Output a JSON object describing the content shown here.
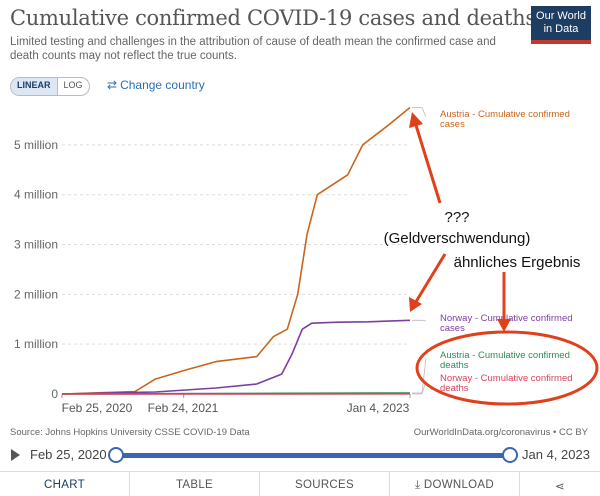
{
  "title": "Cumulative confirmed COVID-19 cases and deaths",
  "subtitle": "Limited testing and challenges in the attribution of cause of death mean the confirmed case and death counts may not reflect the true counts.",
  "logo": {
    "line1": "Our World",
    "line2": "in Data"
  },
  "controls": {
    "linear": "LINEAR",
    "log": "LOG",
    "change_country": "Change country"
  },
  "chart_data": {
    "type": "line",
    "x_ticks": [
      "Feb 25, 2020",
      "Feb 24, 2021",
      "Jan 4, 2023"
    ],
    "y_ticks": [
      "0",
      "1 million",
      "2 million",
      "3 million",
      "4 million",
      "5 million"
    ],
    "ylim": [
      0,
      5800000
    ],
    "series": [
      {
        "name": "Austria - Cumulative confirmed cases",
        "color": "#c8651b",
        "points": [
          [
            "2020-02-25",
            0
          ],
          [
            "2020-10-01",
            50000
          ],
          [
            "2020-12-01",
            300000
          ],
          [
            "2021-03-01",
            480000
          ],
          [
            "2021-06-01",
            650000
          ],
          [
            "2021-10-01",
            750000
          ],
          [
            "2021-11-20",
            1150000
          ],
          [
            "2022-01-01",
            1300000
          ],
          [
            "2022-02-01",
            2000000
          ],
          [
            "2022-03-01",
            3200000
          ],
          [
            "2022-04-01",
            4000000
          ],
          [
            "2022-07-01",
            4400000
          ],
          [
            "2022-08-15",
            5000000
          ],
          [
            "2022-11-01",
            5400000
          ],
          [
            "2023-01-04",
            5750000
          ]
        ]
      },
      {
        "name": "Norway - Cumulative confirmed cases",
        "color": "#7b3fa0",
        "points": [
          [
            "2020-02-25",
            0
          ],
          [
            "2020-12-01",
            40000
          ],
          [
            "2021-06-01",
            120000
          ],
          [
            "2021-10-01",
            200000
          ],
          [
            "2021-12-15",
            400000
          ],
          [
            "2022-01-15",
            800000
          ],
          [
            "2022-02-15",
            1300000
          ],
          [
            "2022-03-15",
            1420000
          ],
          [
            "2022-06-01",
            1440000
          ],
          [
            "2022-09-01",
            1450000
          ],
          [
            "2023-01-04",
            1480000
          ]
        ]
      },
      {
        "name": "Austria - Cumulative confirmed deaths",
        "color": "#2e8b57",
        "points": [
          [
            "2020-02-25",
            0
          ],
          [
            "2021-01-01",
            7000
          ],
          [
            "2022-01-01",
            14000
          ],
          [
            "2023-01-04",
            21000
          ]
        ]
      },
      {
        "name": "Norway - Cumulative confirmed deaths",
        "color": "#d9415b",
        "points": [
          [
            "2020-02-25",
            0
          ],
          [
            "2021-01-01",
            500
          ],
          [
            "2022-01-01",
            1300
          ],
          [
            "2023-01-04",
            4500
          ]
        ]
      }
    ],
    "labels": [
      {
        "line1": "Austria - Cumulative confirmed",
        "line2": "cases",
        "color": "#c8651b"
      },
      {
        "line1": "Norway - Cumulative confirmed",
        "line2": "cases",
        "color": "#7b3fa0"
      },
      {
        "line1": "Austria - Cumulative confirmed",
        "line2": "deaths",
        "color": "#2e8b57"
      },
      {
        "line1": "Norway - Cumulative confirmed",
        "line2": "deaths",
        "color": "#d9415b"
      }
    ],
    "annotations": {
      "question": "???",
      "geld": "(Geldverschwendung)",
      "aehnlich": "ähnliches Ergebnis",
      "color": "#e0401c"
    }
  },
  "source": "Source: Johns Hopkins University CSSE COVID-19 Data",
  "owid_link": "OurWorldInData.org/coronavirus • CC BY",
  "timeline": {
    "start": "Feb 25, 2020",
    "end": "Jan 4, 2023"
  },
  "tabs": {
    "chart": "CHART",
    "table": "TABLE",
    "sources": "SOURCES",
    "download": "DOWNLOAD"
  }
}
